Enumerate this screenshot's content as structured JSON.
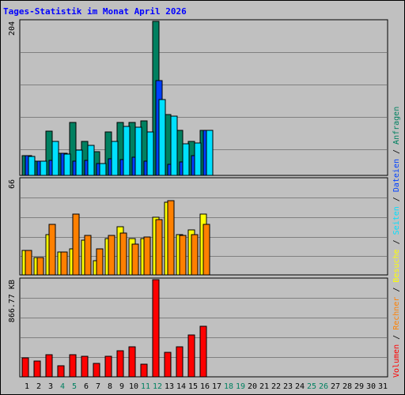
{
  "title": "Tages-Statistik im Monat April 2026",
  "chart_data": [
    {
      "type": "bar",
      "panel": "Anfragen / Dateien / Seiten",
      "ylabel": "204",
      "ylim": [
        0,
        204
      ],
      "categories": [
        "1",
        "2",
        "3",
        "4",
        "5",
        "6",
        "7",
        "8",
        "9",
        "10",
        "11",
        "12",
        "13",
        "14",
        "15",
        "16",
        "17",
        "18",
        "19",
        "20",
        "21",
        "22",
        "23",
        "24",
        "25",
        "26",
        "27",
        "28",
        "29",
        "30",
        "31"
      ],
      "series": [
        {
          "name": "Anfragen",
          "color": "#008060",
          "values": [
            26,
            19,
            59,
            29,
            70,
            45,
            31,
            58,
            70,
            70,
            72,
            204,
            81,
            60,
            45,
            60,
            0,
            0,
            0,
            0,
            0,
            0,
            0,
            0,
            0,
            0,
            0,
            0,
            0,
            0,
            0
          ]
        },
        {
          "name": "Dateien",
          "color": "#0040ff",
          "values": [
            26,
            19,
            20,
            29,
            19,
            20,
            16,
            22,
            21,
            24,
            19,
            126,
            15,
            18,
            26,
            60,
            0,
            0,
            0,
            0,
            0,
            0,
            0,
            0,
            0,
            0,
            0,
            0,
            0,
            0,
            0
          ]
        },
        {
          "name": "Seiten",
          "color": "#00e0ff",
          "values": [
            25,
            19,
            45,
            28,
            33,
            40,
            16,
            45,
            65,
            64,
            58,
            100,
            78,
            42,
            43,
            60,
            0,
            0,
            0,
            0,
            0,
            0,
            0,
            0,
            0,
            0,
            0,
            0,
            0,
            0,
            0
          ]
        }
      ]
    },
    {
      "type": "bar",
      "panel": "Besuche / Rechner",
      "ylabel": "66",
      "ylim": [
        0,
        66
      ],
      "categories": [
        "1",
        "2",
        "3",
        "4",
        "5",
        "6",
        "7",
        "8",
        "9",
        "10",
        "11",
        "12",
        "13",
        "14",
        "15",
        "16",
        "17",
        "18",
        "19",
        "20",
        "21",
        "22",
        "23",
        "24",
        "25",
        "26",
        "27",
        "28",
        "29",
        "30",
        "31"
      ],
      "series": [
        {
          "name": "Besuche",
          "color": "#ffff00",
          "values": [
            17,
            12,
            28,
            16,
            18,
            24,
            10,
            25,
            33,
            25,
            25,
            40,
            50,
            28,
            31,
            42,
            0,
            0,
            0,
            0,
            0,
            0,
            0,
            0,
            0,
            0,
            0,
            0,
            0,
            0,
            0
          ]
        },
        {
          "name": "Rechner",
          "color": "#ff8000",
          "values": [
            17,
            12,
            35,
            16,
            42,
            27,
            18,
            27,
            29,
            21,
            26,
            38,
            51,
            27,
            28,
            35,
            0,
            0,
            0,
            0,
            0,
            0,
            0,
            0,
            0,
            0,
            0,
            0,
            0,
            0,
            0
          ]
        }
      ]
    },
    {
      "type": "bar",
      "panel": "Volumen",
      "ylabel": "866.77 KB",
      "ylim": [
        0,
        866.77
      ],
      "categories": [
        "1",
        "2",
        "3",
        "4",
        "5",
        "6",
        "7",
        "8",
        "9",
        "10",
        "11",
        "12",
        "13",
        "14",
        "15",
        "16",
        "17",
        "18",
        "19",
        "20",
        "21",
        "22",
        "23",
        "24",
        "25",
        "26",
        "27",
        "28",
        "29",
        "30",
        "31"
      ],
      "series": [
        {
          "name": "Volumen",
          "color": "#ff0000",
          "values": [
            170,
            140,
            195,
            100,
            200,
            185,
            120,
            185,
            230,
            265,
            115,
            866.77,
            215,
            270,
            375,
            450,
            0,
            0,
            0,
            0,
            0,
            0,
            0,
            0,
            0,
            0,
            0,
            0,
            0,
            0,
            0
          ]
        }
      ]
    }
  ],
  "weekend_days": [
    "4",
    "5",
    "11",
    "12",
    "18",
    "19",
    "25",
    "26"
  ],
  "day_label_colors": {
    "weekday": "#000000",
    "weekend": "#008060"
  },
  "legend_right": [
    {
      "label": "Volumen",
      "color": "#ff0000"
    },
    {
      "label": "Rechner",
      "color": "#ff8000"
    },
    {
      "label": "Besuche",
      "color": "#ffff00"
    },
    {
      "label": "Seiten",
      "color": "#00e0ff"
    },
    {
      "label": "Dateien",
      "color": "#0040ff"
    },
    {
      "label": "Anfragen",
      "color": "#008060"
    }
  ],
  "legend_separator": "/"
}
